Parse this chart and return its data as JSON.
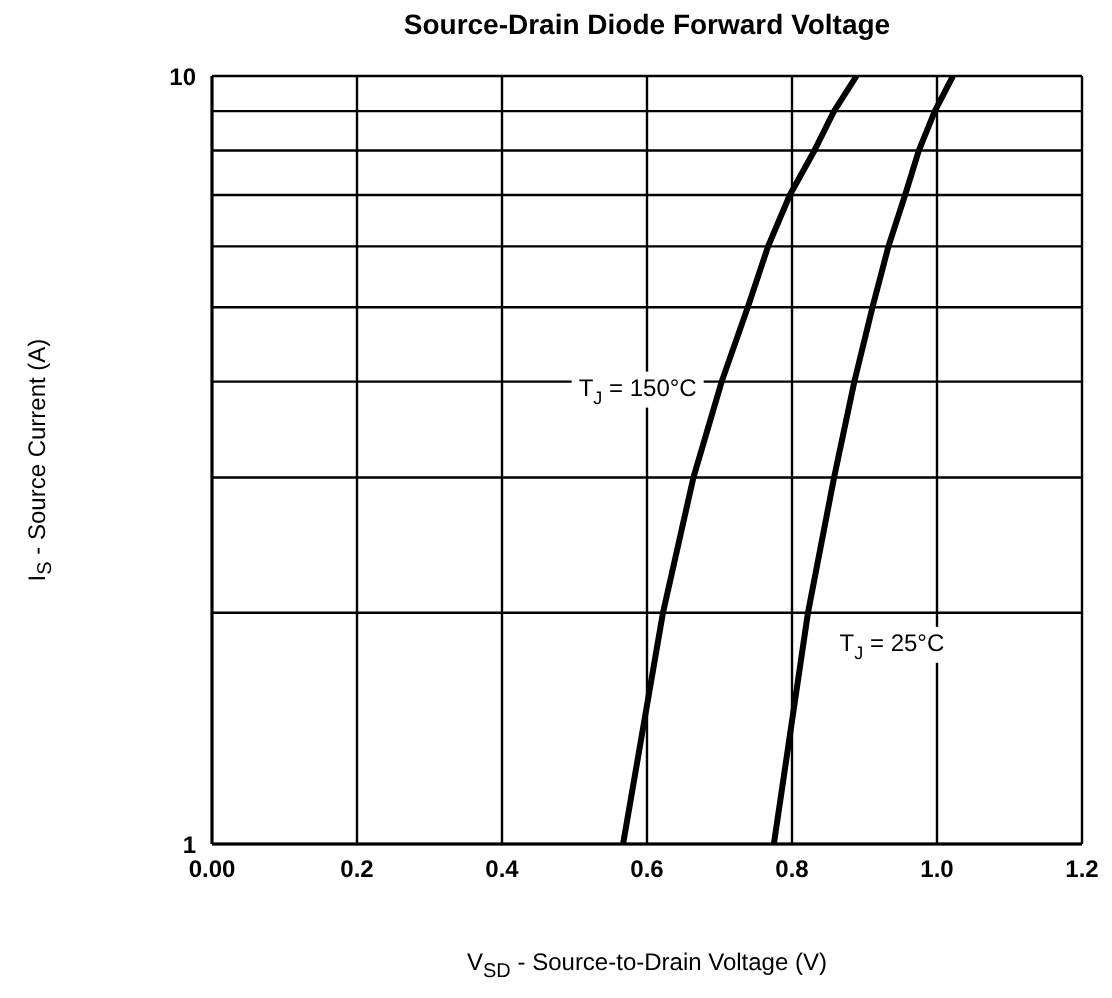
{
  "chart_data": {
    "type": "line",
    "title": "Source-Drain Diode Forward Voltage",
    "xlabel": "V$_{SD}$ - Source-to-Drain Voltage (V)",
    "ylabel": "I$_{S}$ - Source Current (A)",
    "log": "y",
    "grid": true,
    "line_style": "solid",
    "marker": "none",
    "xlim": [
      0,
      1.2
    ],
    "xticks": [
      {
        "value": 0,
        "label": "0.00"
      },
      0.2,
      0.4,
      0.6,
      0.8,
      {
        "value": 1,
        "label": "1.0"
      },
      1.2
    ],
    "ylim": [
      1,
      10
    ],
    "yticks": [
      1,
      {
        "value": 2,
        "label": null
      },
      {
        "value": 3,
        "label": null
      },
      {
        "value": 4,
        "label": null
      },
      {
        "value": 5,
        "label": null
      },
      {
        "value": 6,
        "label": null
      },
      {
        "value": 7,
        "label": null
      },
      {
        "value": 8,
        "label": null
      },
      {
        "value": 9,
        "label": null
      },
      10
    ],
    "series": [
      {
        "name": "T$_{J}$ = 150°C",
        "color": "#000000",
        "x": [
          0.567,
          0.622,
          0.664,
          0.703,
          0.739,
          0.767,
          0.797,
          0.831,
          0.858,
          0.889
        ],
        "values": [
          1,
          2,
          3,
          4,
          5,
          6,
          7,
          8,
          9,
          10
        ]
      },
      {
        "name": "T$_{J}$ = 25°C",
        "color": "#000000",
        "x": [
          0.775,
          0.822,
          0.858,
          0.886,
          0.911,
          0.933,
          0.956,
          0.975,
          0.997,
          1.022
        ],
        "values": [
          1,
          2,
          3,
          4,
          5,
          6,
          7,
          8,
          9,
          10
        ]
      }
    ]
  }
}
